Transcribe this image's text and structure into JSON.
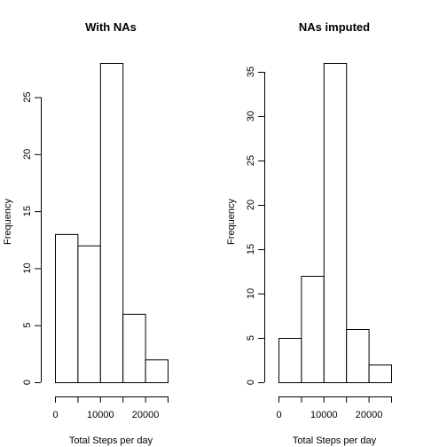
{
  "chart_data": [
    {
      "type": "bar",
      "title": "With NAs",
      "xlabel": "Total Steps per day",
      "ylabel": "Frequency",
      "bin_edges": [
        0,
        5000,
        10000,
        15000,
        20000,
        25000
      ],
      "values": [
        13,
        12,
        28,
        6,
        2
      ],
      "x_ticks": [
        0,
        10000,
        20000
      ],
      "y_ticks": [
        0,
        5,
        10,
        15,
        20,
        25
      ],
      "xlim": [
        0,
        25000
      ],
      "ylim": [
        0,
        28
      ]
    },
    {
      "type": "bar",
      "title": "NAs imputed",
      "xlabel": "Total Steps per day",
      "ylabel": "Frequency",
      "bin_edges": [
        0,
        5000,
        10000,
        15000,
        20000,
        25000
      ],
      "values": [
        5,
        12,
        36,
        6,
        2
      ],
      "x_ticks": [
        0,
        10000,
        20000
      ],
      "y_ticks": [
        0,
        5,
        10,
        15,
        20,
        25,
        30,
        35
      ],
      "xlim": [
        0,
        25000
      ],
      "ylim": [
        0,
        36
      ]
    }
  ]
}
